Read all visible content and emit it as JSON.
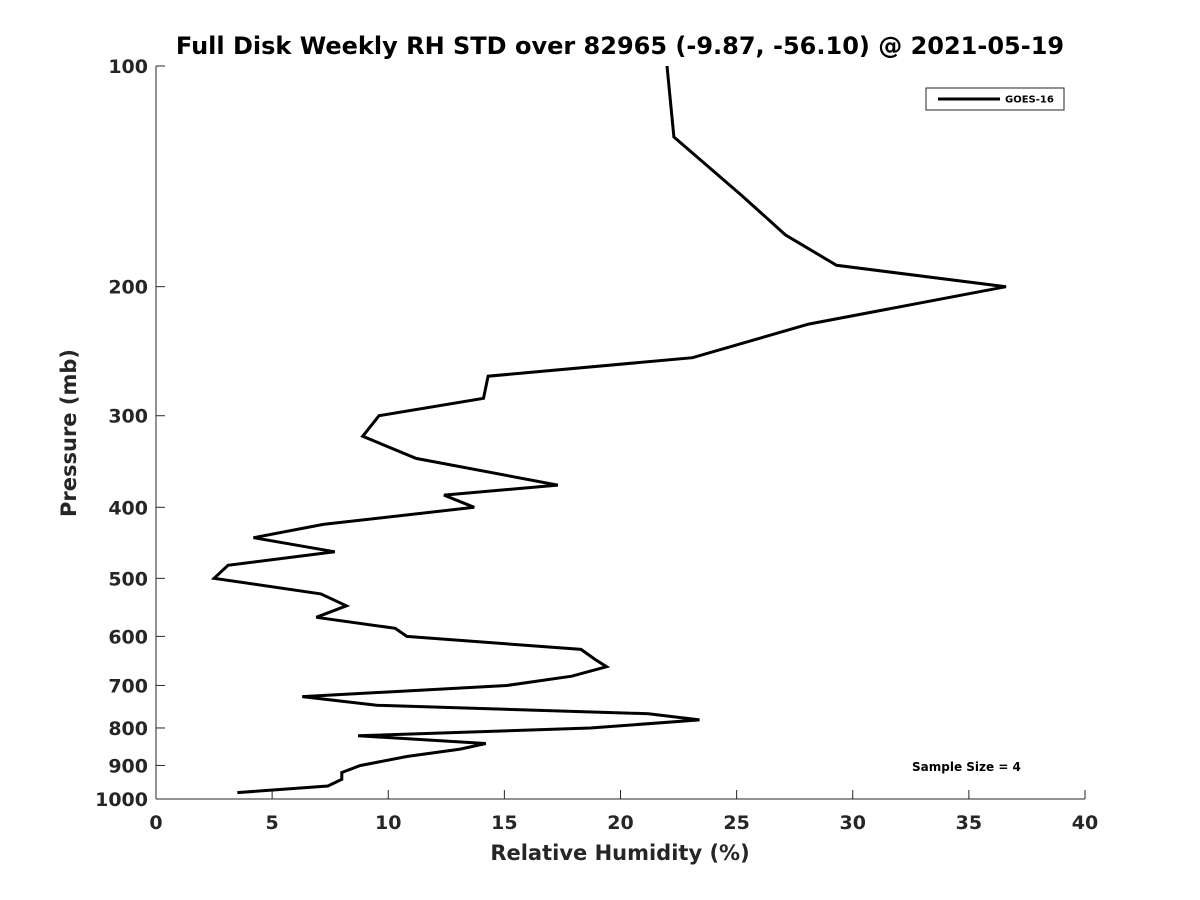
{
  "chart_data": {
    "type": "line",
    "title": "Full Disk Weekly RH STD over 82965 (-9.87, -56.10) @ 2021-05-19",
    "xlabel": "Relative Humidity (%)",
    "ylabel": "Pressure (mb)",
    "xlim": [
      0,
      40
    ],
    "ylim": [
      100,
      1000
    ],
    "yscale": "log",
    "yreversed": true,
    "x_ticks": [
      0,
      5,
      10,
      15,
      20,
      25,
      30,
      35,
      40
    ],
    "x_tick_labels": [
      "0",
      "5",
      "10",
      "15",
      "20",
      "25",
      "30",
      "35",
      "40"
    ],
    "y_ticks": [
      100,
      200,
      300,
      400,
      500,
      600,
      700,
      800,
      900,
      1000
    ],
    "y_tick_labels": [
      "100",
      "200",
      "300",
      "400",
      "500",
      "600",
      "700",
      "800",
      "900",
      "1000"
    ],
    "grid": false,
    "legend_position": "top-right",
    "annotation": "Sample Size = 4",
    "series": [
      {
        "name": "GOES-16",
        "color": "#000000",
        "points": [
          [
            22.0,
            100
          ],
          [
            22.3,
            125
          ],
          [
            25.2,
            150
          ],
          [
            27.1,
            170
          ],
          [
            29.3,
            187
          ],
          [
            36.6,
            200
          ],
          [
            28.1,
            225
          ],
          [
            23.1,
            250
          ],
          [
            14.3,
            265
          ],
          [
            14.1,
            284
          ],
          [
            9.6,
            300
          ],
          [
            8.9,
            320
          ],
          [
            11.2,
            343
          ],
          [
            17.3,
            373
          ],
          [
            12.4,
            385
          ],
          [
            13.7,
            400
          ],
          [
            7.2,
            422
          ],
          [
            4.2,
            440
          ],
          [
            7.7,
            460
          ],
          [
            3.1,
            480
          ],
          [
            2.5,
            500
          ],
          [
            7.1,
            525
          ],
          [
            8.2,
            545
          ],
          [
            6.9,
            565
          ],
          [
            10.3,
            585
          ],
          [
            10.8,
            600
          ],
          [
            18.3,
            625
          ],
          [
            18.9,
            645
          ],
          [
            19.4,
            660
          ],
          [
            17.9,
            680
          ],
          [
            15.1,
            700
          ],
          [
            6.3,
            725
          ],
          [
            9.5,
            745
          ],
          [
            21.2,
            765
          ],
          [
            23.4,
            780
          ],
          [
            18.7,
            800
          ],
          [
            8.7,
            820
          ],
          [
            14.2,
            840
          ],
          [
            13.1,
            855
          ],
          [
            10.8,
            875
          ],
          [
            8.8,
            900
          ],
          [
            8.0,
            920
          ],
          [
            8.0,
            940
          ],
          [
            7.4,
            960
          ],
          [
            3.5,
            980
          ]
        ]
      }
    ]
  }
}
